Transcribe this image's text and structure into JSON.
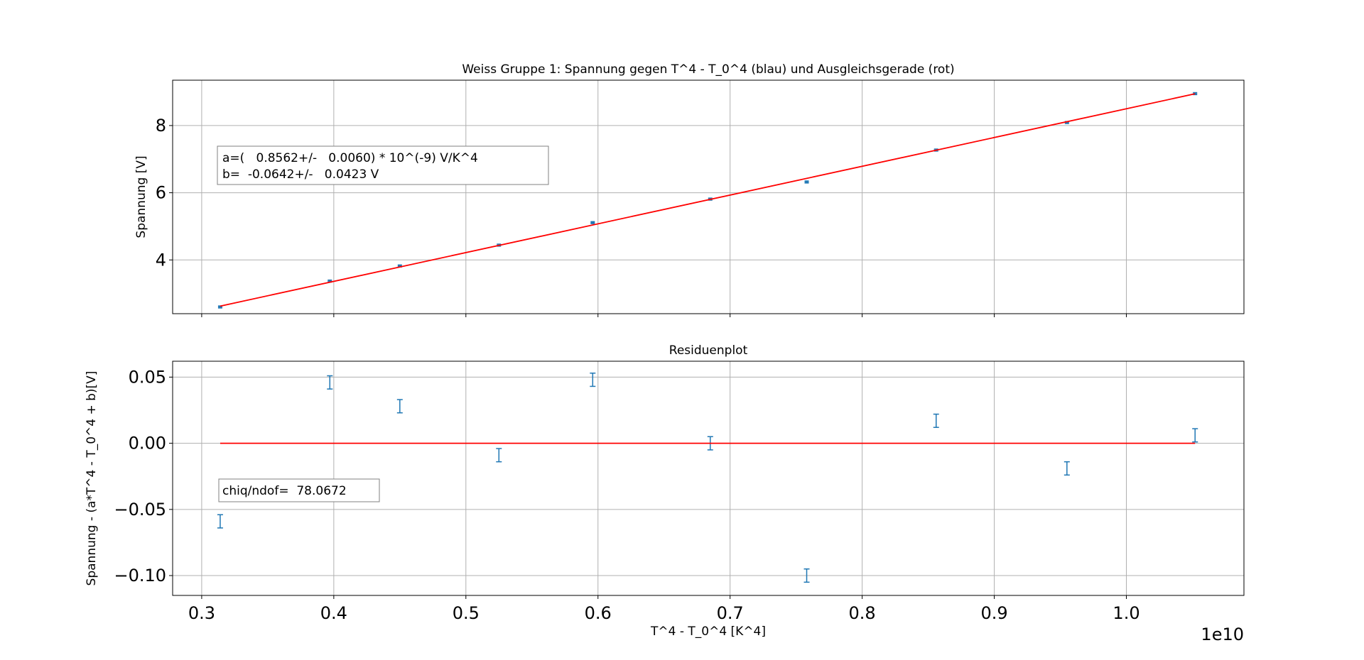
{
  "chart_data": [
    {
      "type": "scatter",
      "title": "Weiss Gruppe 1: Spannung  gegen T^4 - T_0^4  (blau) und Ausgleichsgerade (rot)",
      "xlabel": "",
      "ylabel": "Spannung [V]",
      "xlim": [
        0.278,
        1.089
      ],
      "ylim": [
        2.4,
        9.35
      ],
      "xticks": [
        0.3,
        0.4,
        0.5,
        0.6,
        0.7,
        0.8,
        0.9,
        1.0
      ],
      "yticks": [
        4,
        6,
        8
      ],
      "ytick_labels": [
        "4",
        "6",
        "8"
      ],
      "grid": true,
      "annotation": {
        "lines": [
          "a=(   0.8562+/-   0.0060) * 10^(-9) V/K^4",
          "b=  -0.0642+/-   0.0423 V"
        ],
        "placement": "upper-left"
      },
      "series": [
        {
          "name": "",
          "style": "points",
          "color": "#1f77b4",
          "x": [
            0.314,
            0.397,
            0.45,
            0.525,
            0.596,
            0.685,
            0.758,
            0.856,
            0.955,
            1.052
          ],
          "y": [
            2.6,
            3.37,
            3.82,
            4.44,
            5.11,
            5.81,
            6.32,
            7.27,
            8.09,
            8.95
          ],
          "yerr": 0.03
        },
        {
          "name": "",
          "style": "line",
          "color": "#ff0000",
          "x": [
            0.314,
            1.052
          ],
          "y": [
            2.625,
            8.945
          ]
        }
      ]
    },
    {
      "type": "scatter",
      "title": "Residuenplot",
      "xlabel": "T^4 - T_0^4 [K^4]",
      "ylabel": "Spannung  - (a*T^4 - T_0^4  + b)[V]",
      "xlim": [
        0.278,
        1.089
      ],
      "ylim": [
        -0.115,
        0.062
      ],
      "xticks": [
        0.3,
        0.4,
        0.5,
        0.6,
        0.7,
        0.8,
        0.9,
        1.0
      ],
      "xtick_labels": [
        "0.3",
        "0.4",
        "0.5",
        "0.6",
        "0.7",
        "0.8",
        "0.9",
        "1.0"
      ],
      "x_offset_label": "1e10",
      "yticks": [
        -0.1,
        -0.05,
        0.0,
        0.05
      ],
      "ytick_labels": [
        "−0.10",
        "−0.05",
        "0.00",
        "0.05"
      ],
      "grid": true,
      "annotation": {
        "lines": [
          "chiq/ndof=  78.0672"
        ],
        "placement": "lower-left"
      },
      "series": [
        {
          "name": "",
          "style": "errorbars",
          "color": "#1f77b4",
          "x": [
            0.314,
            0.397,
            0.45,
            0.525,
            0.596,
            0.685,
            0.758,
            0.856,
            0.955,
            1.052
          ],
          "y": [
            -0.059,
            0.046,
            0.028,
            -0.009,
            0.048,
            0.0,
            -0.1,
            0.017,
            -0.019,
            0.006
          ],
          "yerr": 0.005
        },
        {
          "name": "",
          "style": "line",
          "color": "#ff0000",
          "x": [
            0.314,
            1.052
          ],
          "y": [
            0.0,
            0.0
          ]
        }
      ]
    }
  ]
}
